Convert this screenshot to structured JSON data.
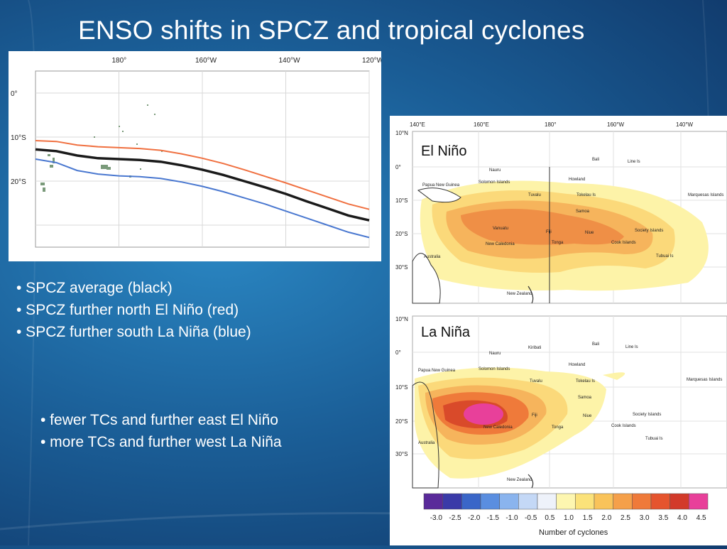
{
  "slide": {
    "title": "ENSO shifts in SPCZ and tropical cyclones"
  },
  "spcz_chart": {
    "longitude_ticks": [
      "180°",
      "160°W",
      "140°W",
      "120°W"
    ],
    "latitude_ticks": [
      "0°",
      "10°S",
      "20°S"
    ],
    "series_colors": {
      "average": "#1a1a1a",
      "el_nino": "#f07040",
      "la_nina": "#4a78d0"
    }
  },
  "chart_data": {
    "type": "line",
    "title": "",
    "xlabel": "",
    "ylabel": "",
    "x_ticks": [
      "180°",
      "160°W",
      "140°W",
      "120°W"
    ],
    "y_ticks": [
      "0°",
      "10°S",
      "20°S"
    ],
    "series": [
      {
        "color": "#f07040",
        "x": [
          160,
          165,
          170,
          175,
          180,
          -175,
          -170,
          -165,
          -160,
          -155,
          -150,
          -145,
          -140,
          -135,
          -130,
          -125,
          -120
        ],
        "y": [
          -10.8,
          -11.0,
          -11.8,
          -12.2,
          -12.4,
          -12.6,
          -13.0,
          -13.8,
          -14.8,
          -16.0,
          -17.4,
          -18.9,
          -20.4,
          -22.0,
          -23.6,
          -25.2,
          -26.4
        ]
      },
      {
        "color": "#1a1a1a",
        "x": [
          160,
          165,
          170,
          175,
          180,
          -175,
          -170,
          -165,
          -160,
          -155,
          -150,
          -145,
          -140,
          -135,
          -130,
          -125,
          -120
        ],
        "y": [
          -12.8,
          -13.2,
          -14.2,
          -14.8,
          -15.0,
          -15.2,
          -15.6,
          -16.4,
          -17.4,
          -18.6,
          -20.0,
          -21.4,
          -22.9,
          -24.6,
          -26.2,
          -27.8,
          -28.9
        ]
      },
      {
        "color": "#4a78d0",
        "x": [
          160,
          165,
          170,
          175,
          180,
          -175,
          -170,
          -165,
          -160,
          -155,
          -150,
          -145,
          -140,
          -135,
          -130,
          -125,
          -120
        ],
        "y": [
          -15.0,
          -15.8,
          -17.6,
          -18.4,
          -18.8,
          -19.0,
          -19.4,
          -20.2,
          -21.2,
          -22.4,
          -23.8,
          -25.2,
          -26.8,
          -28.4,
          -30.0,
          -31.6,
          -32.8
        ]
      }
    ]
  },
  "cyclone_maps": {
    "longitude_ticks": [
      "140°E",
      "160°E",
      "180°",
      "160°W",
      "140°W"
    ],
    "latitude_ticks": [
      "10°N",
      "0°",
      "10°S",
      "20°S",
      "30°S"
    ],
    "el_nino_label": "El Niño",
    "la_nina_label": "La Niña",
    "place_labels": {
      "papua_new_guinea": "Papua New Guinea",
      "solomon_islands": "Solomon Islands",
      "vanuatu": "Vanuatu",
      "new_caledonia": "New Caledonia",
      "fiji": "Fiji",
      "tonga": "Tonga",
      "niue": "Niue",
      "samoa": "Samoa",
      "tuvalu": "Tuvalu",
      "tokelau": "Tokelau Is",
      "kiribati": "Kiribati",
      "nauru": "Nauru",
      "line_is": "Line Is",
      "cook_islands": "Cook Islands",
      "society_islands": "Society Islands",
      "tubuai": "Tubuai Is",
      "marquesas": "Marquesas Islands",
      "australia": "Australia",
      "new_zealand": "New Zealand",
      "howland": "Howland",
      "bali": "Bali"
    }
  },
  "colorbar": {
    "tick_labels": [
      "-3.0",
      "-2.5",
      "-2.0",
      "-1.5",
      "-1.0",
      "-0.5",
      "0.5",
      "1.0",
      "1.5",
      "2.0",
      "2.5",
      "3.0",
      "3.5",
      "4.0",
      "4.5"
    ],
    "colors": [
      "#5a2a9a",
      "#3a3aa8",
      "#3a66c8",
      "#5a8ee0",
      "#8ab4ee",
      "#c4d8f6",
      "#eef2fa",
      "#fdf6b0",
      "#fbe27a",
      "#f9c35a",
      "#f5a04a",
      "#ef7a3a",
      "#e5542e",
      "#d23a2a",
      "#e8409a"
    ],
    "caption": "Number of cyclones"
  },
  "bullets": {
    "spcz": [
      "• SPCZ average (black)",
      "• SPCZ further north El Niño (red)",
      "• SPCZ further south La Niña (blue)"
    ],
    "tcs": [
      "• fewer TCs and further east El Niño",
      "• more TCs and further west La Niña"
    ]
  }
}
